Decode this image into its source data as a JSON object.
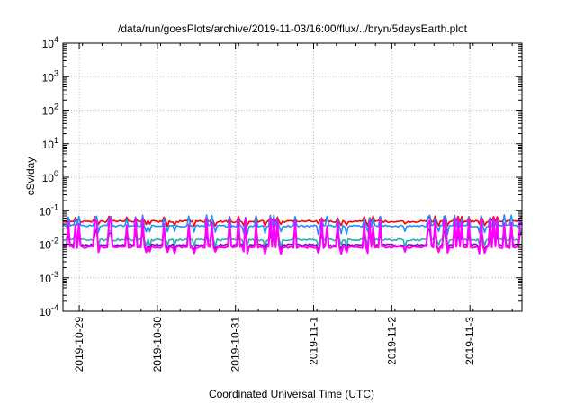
{
  "chart_data": {
    "type": "line",
    "title": "/data/run/goesPlots/archive/2019-11-03/16:00/flux/../bryn/5daysEarth.plot",
    "xlabel": "Coordinated Universal Time (UTC)",
    "ylabel": "cSv/day",
    "yscale": "log",
    "ylim": [
      0.0001,
      10000
    ],
    "y_ticks": [
      {
        "base": "10",
        "exp": "4",
        "value": 10000
      },
      {
        "base": "10",
        "exp": "3",
        "value": 1000
      },
      {
        "base": "10",
        "exp": "2",
        "value": 100
      },
      {
        "base": "10",
        "exp": "1",
        "value": 10
      },
      {
        "base": "10",
        "exp": "0",
        "value": 1
      },
      {
        "base": "10",
        "exp": "-1",
        "value": 0.1
      },
      {
        "base": "10",
        "exp": "-2",
        "value": 0.01
      },
      {
        "base": "10",
        "exp": "-3",
        "value": 0.001
      },
      {
        "base": "10",
        "exp": "-4",
        "value": 0.0001
      }
    ],
    "xlim": [
      "2019-10-28T19:00",
      "2019-11-03T16:00"
    ],
    "x_ticks": [
      {
        "label": "2019-10-29",
        "value": "2019-10-29T00:00"
      },
      {
        "label": "2019-10-30",
        "value": "2019-10-30T00:00"
      },
      {
        "label": "2019-10-31",
        "value": "2019-10-31T00:00"
      },
      {
        "label": "2019-11-1",
        "value": "2019-11-01T00:00"
      },
      {
        "label": "2019-11-2",
        "value": "2019-11-02T00:00"
      },
      {
        "label": "2019-11-3",
        "value": "2019-11-03T00:00"
      }
    ],
    "grid": true,
    "series": [
      {
        "color": "#ff0000",
        "base": 0.048,
        "spike": 0.07,
        "dip": 0.038
      },
      {
        "color": "#1e90ff",
        "base": 0.035,
        "spike": 0.075,
        "dip": 0.022
      },
      {
        "color": "#20b2aa",
        "base": 0.0135,
        "spike": 0.03,
        "dip": 0.0095
      },
      {
        "color": "#9400d3",
        "base": 0.0095,
        "spike": 0.028,
        "dip": 0.0068
      },
      {
        "color": "#ff00ff",
        "base": 0.0082,
        "spike": 0.06,
        "dip": 0.0055
      }
    ]
  }
}
